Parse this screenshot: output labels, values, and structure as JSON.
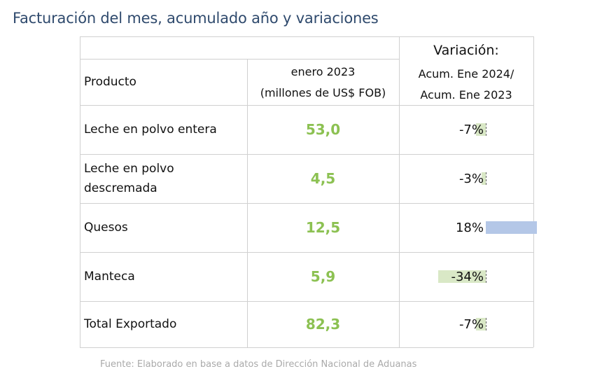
{
  "title": "Facturación del mes, acumulado año y variaciones",
  "table": {
    "header": {
      "variacion": "Variación:",
      "producto": "Producto",
      "month_line1": "enero 2023",
      "month_line2": "(millones de US$ FOB)",
      "acum_line1": "Acum. Ene 2024/",
      "acum_line2": "Acum. Ene 2023"
    },
    "rows": [
      {
        "label_line1": "Leche en polvo entera",
        "label_line2": "",
        "value": "53,0",
        "variation": "-7%",
        "variation_value": -7
      },
      {
        "label_line1": "Leche en polvo",
        "label_line2": "descremada",
        "value": "4,5",
        "variation": "-3%",
        "variation_value": -3
      },
      {
        "label_line1": "Quesos",
        "label_line2": "",
        "value": "12,5",
        "variation": "18%",
        "variation_value": 18
      },
      {
        "label_line1": "Manteca",
        "label_line2": "",
        "value": "5,9",
        "variation": "-34%",
        "variation_value": -34
      },
      {
        "label_line1": "Total Exportado",
        "label_line2": "",
        "value": "82,3",
        "variation": "-7%",
        "variation_value": -7
      }
    ]
  },
  "colors": {
    "title": "#2f4a6d",
    "value_green": "#8cc152",
    "bar_negative": "#d9e8c6",
    "bar_positive": "#b4c7e7",
    "source": "#aaaaaa"
  },
  "source": "Fuente: Elaborado en base a datos de Dirección Nacional de Aduanas"
}
